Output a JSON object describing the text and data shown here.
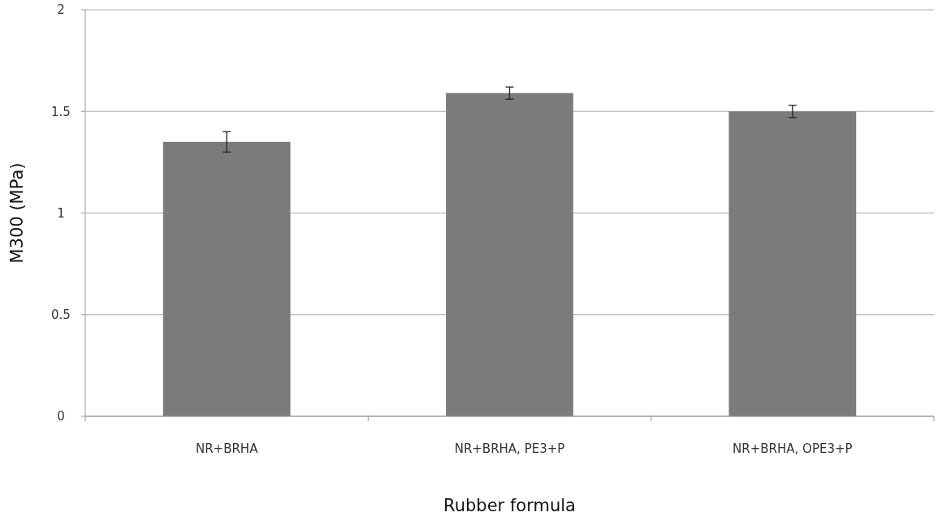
{
  "chart_data": {
    "type": "bar",
    "xlabel": "Rubber formula",
    "ylabel": "M300 (MPa)",
    "categories": [
      "NR+BRHA",
      "NR+BRHA, PE3+P",
      "NR+BRHA, OPE3+P"
    ],
    "values": [
      1.35,
      1.59,
      1.5
    ],
    "errors": [
      0.05,
      0.03,
      0.03
    ],
    "color": "#7b7b7e",
    "ylim": [
      0,
      2
    ],
    "yticks": [
      0,
      0.5,
      1,
      1.5,
      2
    ],
    "grid": "y"
  }
}
